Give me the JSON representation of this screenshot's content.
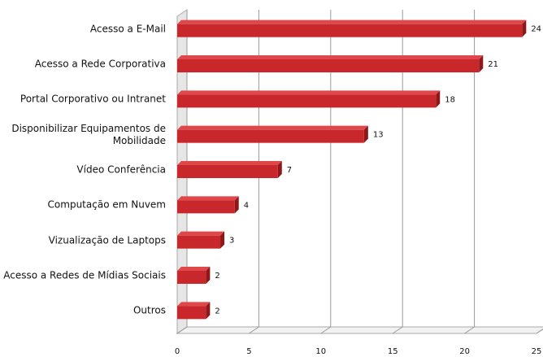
{
  "chart_data": {
    "type": "bar",
    "orientation": "horizontal",
    "categories": [
      "Acesso a E-Mail",
      "Acesso a Rede Corporativa",
      "Portal Corporativo ou Intranet",
      "Disponibilizar Equipamentos de Mobilidade",
      "Vídeo Conferência",
      "Computação em Nuvem",
      "Vizualização de Laptops",
      "Acesso a Redes de Mídias Sociais",
      "Outros"
    ],
    "values": [
      24,
      21,
      18,
      13,
      7,
      4,
      3,
      2,
      2
    ],
    "color": "#c8282c",
    "xlim": [
      0,
      25
    ],
    "xticks": [
      0,
      5,
      10,
      15,
      20,
      25
    ],
    "grid": true
  }
}
